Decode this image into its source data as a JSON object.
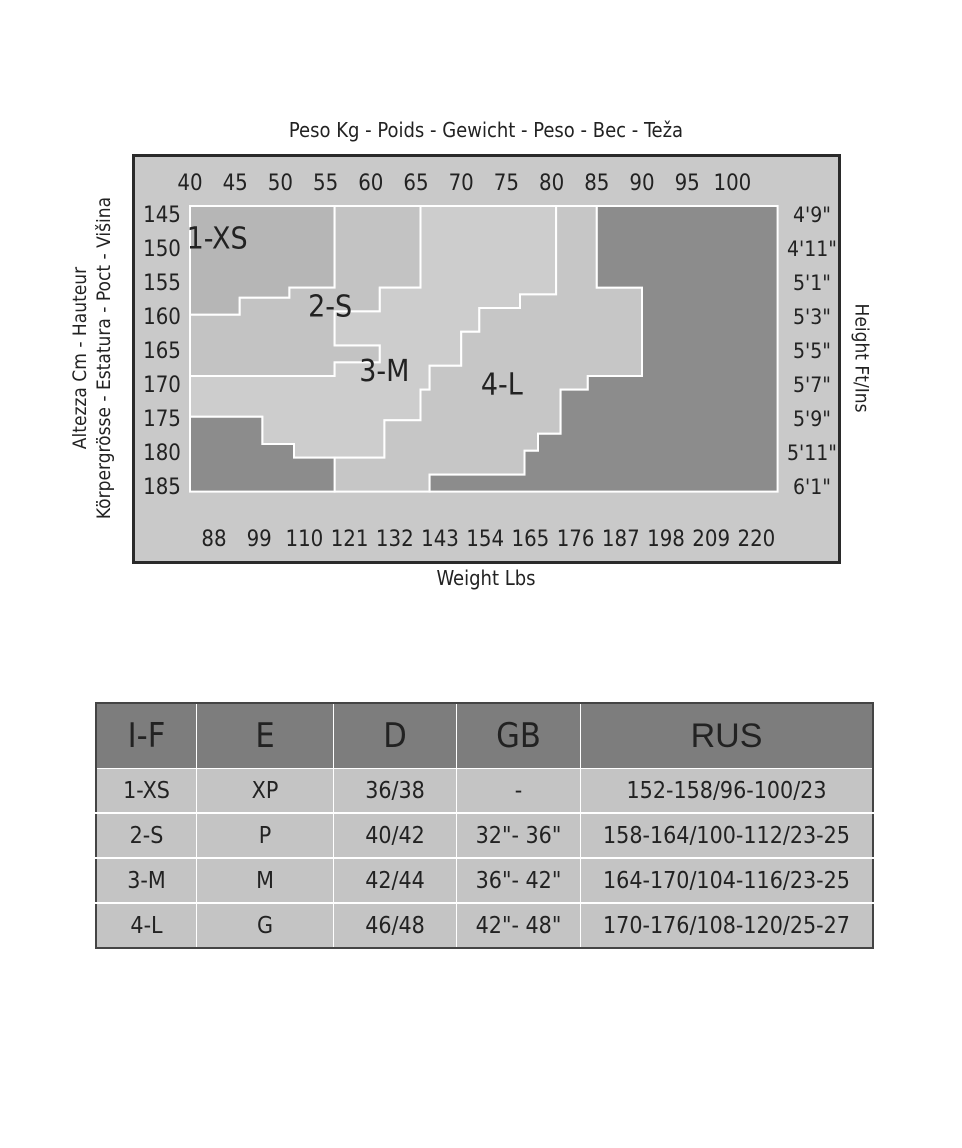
{
  "chart_data": {
    "type": "heatmap",
    "title_top": "Peso Kg - Poids - Gewicht - Peso - Bec - Teža",
    "title_bottom": "Weight Lbs",
    "ylabel_left_lines": [
      "Altezza Cm - Hauteur",
      "Körpergrösse - Estatura - Poct - Višina"
    ],
    "ylabel_right": "Height Ft/Ins",
    "x_kg_ticks": [
      "40",
      "45",
      "50",
      "55",
      "60",
      "65",
      "70",
      "75",
      "80",
      "85",
      "90",
      "95",
      "100"
    ],
    "x_lbs_ticks": [
      "88",
      "99",
      "110",
      "121",
      "132",
      "143",
      "154",
      "165",
      "176",
      "187",
      "198",
      "209",
      "220"
    ],
    "y_cm_ticks": [
      "145",
      "150",
      "155",
      "160",
      "165",
      "170",
      "175",
      "180",
      "185"
    ],
    "y_ftin_ticks": [
      "4'9\"",
      "4'11\"",
      "5'1\"",
      "5'3\"",
      "5'5\"",
      "5'7\"",
      "5'9\"",
      "5'11\"",
      "6'1\""
    ],
    "weight_range_kg": [
      40,
      105
    ],
    "height_range_cm": [
      145,
      187
    ],
    "size_labels": [
      {
        "label": "1-XS",
        "kg": 43,
        "cm": 150
      },
      {
        "label": "2-S",
        "kg": 55.5,
        "cm": 160
      },
      {
        "label": "3-M",
        "kg": 61.5,
        "cm": 169.5
      },
      {
        "label": "4-L",
        "kg": 74.5,
        "cm": 171.5
      }
    ],
    "regions": [
      {
        "name": "1-XS",
        "color": "#b6b6b6",
        "points": [
          [
            40,
            145
          ],
          [
            56,
            145
          ],
          [
            56,
            157
          ],
          [
            51,
            157
          ],
          [
            51,
            158.5
          ],
          [
            45.5,
            158.5
          ],
          [
            45.5,
            161
          ],
          [
            40,
            161
          ]
        ]
      },
      {
        "name": "2-S",
        "color": "#c3c3c3",
        "points": [
          [
            56,
            145
          ],
          [
            65.5,
            145
          ],
          [
            65.5,
            157
          ],
          [
            61,
            157
          ],
          [
            61,
            160.5
          ],
          [
            56,
            160.5
          ],
          [
            56,
            165.5
          ],
          [
            61,
            165.5
          ],
          [
            61,
            168
          ],
          [
            56,
            168
          ],
          [
            56,
            170
          ],
          [
            40,
            170
          ],
          [
            40,
            161
          ],
          [
            45.5,
            161
          ],
          [
            45.5,
            158.5
          ],
          [
            51,
            158.5
          ],
          [
            51,
            157
          ],
          [
            56,
            157
          ]
        ]
      },
      {
        "name": "3-M",
        "color": "#cdcdcd",
        "points": [
          [
            65.5,
            145
          ],
          [
            80.5,
            145
          ],
          [
            80.5,
            158
          ],
          [
            76.5,
            158
          ],
          [
            76.5,
            160
          ],
          [
            72,
            160
          ],
          [
            72,
            163.5
          ],
          [
            70,
            163.5
          ],
          [
            70,
            168.5
          ],
          [
            66.5,
            168.5
          ],
          [
            66.5,
            172
          ],
          [
            65.5,
            172
          ],
          [
            65.5,
            176.5
          ],
          [
            61.5,
            176.5
          ],
          [
            61.5,
            182
          ],
          [
            51.5,
            182
          ],
          [
            51.5,
            180
          ],
          [
            48,
            180
          ],
          [
            48,
            176
          ],
          [
            40,
            176
          ],
          [
            40,
            170
          ],
          [
            56,
            170
          ],
          [
            56,
            168
          ],
          [
            61,
            168
          ],
          [
            61,
            165.5
          ],
          [
            56,
            165.5
          ],
          [
            56,
            160.5
          ],
          [
            61,
            160.5
          ],
          [
            61,
            157
          ],
          [
            65.5,
            157
          ]
        ]
      },
      {
        "name": "4-L",
        "color": "#c6c6c6",
        "points": [
          [
            80.5,
            145
          ],
          [
            85,
            145
          ],
          [
            85,
            157
          ],
          [
            90,
            157
          ],
          [
            90,
            170
          ],
          [
            84,
            170
          ],
          [
            84,
            172
          ],
          [
            81,
            172
          ],
          [
            81,
            178.5
          ],
          [
            78.5,
            178.5
          ],
          [
            78.5,
            181
          ],
          [
            77,
            181
          ],
          [
            77,
            184.5
          ],
          [
            66.5,
            184.5
          ],
          [
            66.5,
            187
          ],
          [
            56,
            187
          ],
          [
            56,
            182
          ],
          [
            61.5,
            182
          ],
          [
            61.5,
            176.5
          ],
          [
            65.5,
            176.5
          ],
          [
            65.5,
            172
          ],
          [
            66.5,
            172
          ],
          [
            66.5,
            168.5
          ],
          [
            70,
            168.5
          ],
          [
            70,
            163.5
          ],
          [
            72,
            163.5
          ],
          [
            72,
            160
          ],
          [
            76.5,
            160
          ],
          [
            76.5,
            158
          ],
          [
            80.5,
            158
          ]
        ]
      },
      {
        "name": "upper-left-corner",
        "color": "#8c8c8c",
        "points": [
          [
            40,
            176
          ],
          [
            48,
            176
          ],
          [
            48,
            180
          ],
          [
            51.5,
            180
          ],
          [
            51.5,
            182
          ],
          [
            56,
            182
          ],
          [
            56,
            187
          ],
          [
            40,
            187
          ]
        ]
      },
      {
        "name": "right-block",
        "color": "#8c8c8c",
        "points": [
          [
            85,
            145
          ],
          [
            105,
            145
          ],
          [
            105,
            187
          ],
          [
            66.5,
            187
          ],
          [
            66.5,
            184.5
          ],
          [
            77,
            184.5
          ],
          [
            77,
            181
          ],
          [
            78.5,
            181
          ],
          [
            78.5,
            178.5
          ],
          [
            81,
            178.5
          ],
          [
            81,
            172
          ],
          [
            84,
            172
          ],
          [
            84,
            170
          ],
          [
            90,
            170
          ],
          [
            90,
            157
          ],
          [
            85,
            157
          ]
        ]
      }
    ]
  },
  "table": {
    "headers": [
      "I-F",
      "E",
      "D",
      "GB",
      "RUS"
    ],
    "rows": [
      [
        "1-XS",
        "XP",
        "36/38",
        "-",
        "152-158/96-100/23"
      ],
      [
        "2-S",
        "P",
        "40/42",
        "32\"- 36\"",
        "158-164/100-112/23-25"
      ],
      [
        "3-M",
        "M",
        "42/44",
        "36\"- 42\"",
        "164-170/104-116/23-25"
      ],
      [
        "4-L",
        "G",
        "46/48",
        "42\"- 48\"",
        "170-176/108-120/25-27"
      ]
    ]
  }
}
